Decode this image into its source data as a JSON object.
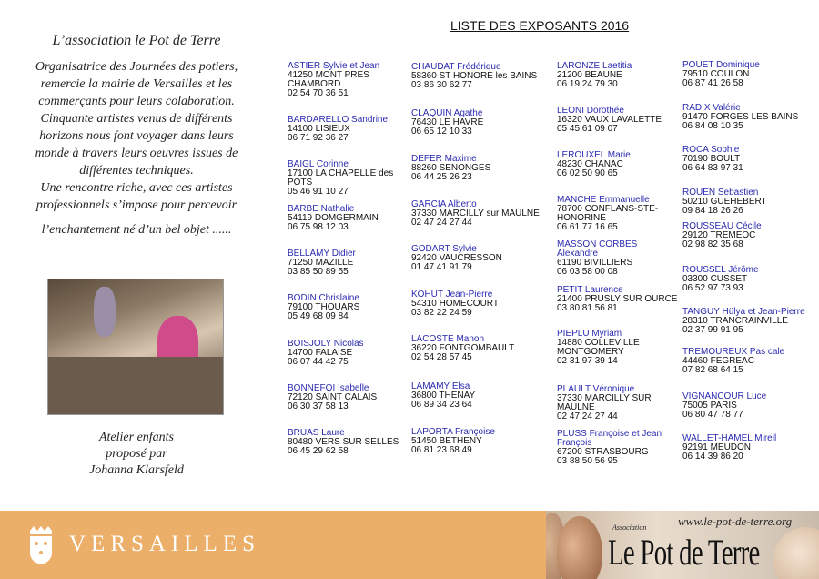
{
  "intro": {
    "title": "L’association le Pot de Terre",
    "body": [
      "Organisatrice des Journées des potiers,",
      "remercie la mairie de Versailles et les",
      "commerçants pour leurs colaboration.",
      "Cinquante artistes venus de différents",
      "horizons nous font voyager  dans leurs",
      "monde à travers leurs oeuvres issues de",
      "différentes techniques.",
      "Une rencontre riche, avec ces artistes",
      "professionnels s’impose pour percevoir"
    ],
    "last_line": "l’enchantement né d’un bel objet ......"
  },
  "photo": {
    "description_icon": "workshop-photo"
  },
  "caption": [
    "Atelier enfants",
    "proposé par",
    "Johanna Klarsfeld"
  ],
  "list_title": "LISTE DES EXPOSANTS 2016",
  "columns": [
    [
      {
        "name": "ASTIER Sylvie et Jean",
        "lines": [
          "41250 MONT PRES",
          "CHAMBORD",
          "02 54 70 36 51"
        ]
      },
      {
        "name": "BARDARELLO Sandrine",
        "lines": [
          "14100 LISIEUX",
          "06 71 92 36 27"
        ]
      },
      {
        "name": "BAIGL Corinne",
        "lines": [
          "17100 LA CHAPELLE des POTS",
          "05 46 91 10 27"
        ]
      },
      {
        "name": "BARBE Nathalie",
        "lines": [
          "54119 DOMGERMAIN",
          "06 75 98 12 03"
        ]
      },
      {
        "name": "BELLAMY Didier",
        "lines": [
          "71250 MAZILLE",
          "03 85 50 89 55"
        ]
      },
      {
        "name": "BODIN Chrislaine",
        "lines": [
          "79100 THOUARS",
          "05 49 68 09 84"
        ]
      },
      {
        "name": "BOISJOLY Nicolas",
        "lines": [
          "14700 FALAISE",
          "06 07 44 42 75"
        ]
      },
      {
        "name": "BONNEFOI Isabelle",
        "lines": [
          "72120 SAINT CALAIS",
          "06 30 37 58 13"
        ]
      },
      {
        "name": "BRUAS Laure",
        "lines": [
          "80480 VERS SUR SELLES",
          "06 45 29 62 58"
        ]
      }
    ],
    [
      {
        "name": "CHAUDAT Frédérique",
        "lines": [
          "58360 ST HONORE les BAINS",
          "03 86 30 62 77"
        ]
      },
      {
        "name": "CLAQUIN Agathe",
        "lines": [
          "76430 LE HAVRE",
          "06 65 12 10 33"
        ]
      },
      {
        "name": "DEFER Maxime",
        "lines": [
          "88260 SENONGES",
          "06 44 25 26 23"
        ]
      },
      {
        "name": "GARCIA Alberto",
        "lines": [
          "37330 MARCILLY sur MAULNE",
          "02 47 24 27 44"
        ]
      },
      {
        "name": "GODART Sylvie",
        "lines": [
          "92420 VAUCRESSON",
          "01 47 41 91 79"
        ]
      },
      {
        "name": "KOHUT Jean-Pierre",
        "lines": [
          "54310 HOMECOURT",
          "03 82 22 24 59"
        ]
      },
      {
        "name": "LACOSTE Manon",
        "lines": [
          "36220 FONTGOMBAULT",
          "02 54 28 57 45"
        ]
      },
      {
        "name": "LAMAMY Elsa",
        "lines": [
          "36800 THENAY",
          "06 89 34 23 64"
        ]
      },
      {
        "name": "LAPORTA Françoise",
        "lines": [
          "51450 BETHENY",
          "06 81 23 68 49"
        ]
      }
    ],
    [
      {
        "name": "LARONZE Laetitia",
        "lines": [
          "21200 BEAUNE",
          "06 19 24 79 30"
        ]
      },
      {
        "name": "LEONI Dorothée",
        "lines": [
          "16320 VAUX LAVALETTE",
          "05 45 61 09 07"
        ]
      },
      {
        "name": "LEROUXEL Marie",
        "lines": [
          "48230 CHANAC",
          "06 02 50 90 65"
        ]
      },
      {
        "name": "MANCHE Emmanuelle",
        "lines": [
          "78700 CONFLANS-STE-HONORINE",
          "06 61 77 16  65"
        ]
      },
      {
        "name": "MASSON CORBES Alexandre",
        "lines": [
          "61190 BIVILLIERS",
          "06 03 58 00 08"
        ]
      },
      {
        "name": "PETIT Laurence",
        "lines": [
          "21400 PRUSLY SUR OURCE",
          "03 80 81 56 81"
        ]
      },
      {
        "name": "PIEPLU Myriam",
        "lines": [
          "14880 COLLEVILLE",
          "MONTGOMERY",
          "02 31 97 39 14"
        ]
      },
      {
        "name": "PLAULT Véronique",
        "lines": [
          "37330 MARCILLY SUR MAULNE",
          "02 47 24 27 44"
        ]
      },
      {
        "name": "PLUSS Françoise et Jean François",
        "lines": [
          "67200 STRASBOURG",
          "03 88 50 56 95"
        ]
      }
    ],
    [
      {
        "name": "POUET Dominique",
        "lines": [
          "79510 COULON",
          "06 87 41 26 58"
        ]
      },
      {
        "name": "RADIX Valérie",
        "lines": [
          "91470 FORGES LES BAINS",
          "06 84 08 10 35"
        ]
      },
      {
        "name": "ROCA Sophie",
        "lines": [
          "70190 BOULT",
          "06 64 83 97 31"
        ]
      },
      {
        "name": "ROUEN Sebastien",
        "lines": [
          "50210 GUEHEBERT",
          "09 84 18 26 26"
        ]
      },
      {
        "name": "ROUSSEAU Cécile",
        "lines": [
          "29120 TREMEOC",
          "02 98 82 35 68"
        ]
      },
      {
        "name": "ROUSSEL Jérôme",
        "lines": [
          "03300 CUSSET",
          "06 52 97 73 93"
        ]
      },
      {
        "name": "TANGUY Hülya et Jean-Pierre",
        "lines": [
          "28310 TRANCRAINVILLE",
          "02 37 99 91 95"
        ]
      },
      {
        "name": "TREMOUREUX Pas cale",
        "lines": [
          "44460 FEGREAC",
          "07 82 68 64 15"
        ]
      },
      {
        "name": "VIGNANCOUR Luce",
        "lines": [
          "75005 PARIS",
          "06 80 47 78 77"
        ]
      },
      {
        "name": "WALLET-HAMEL Mireil",
        "lines": [
          "92191 MEUDON",
          "06 14 39 86 20"
        ]
      }
    ]
  ],
  "footer": {
    "versailles_logo": "VERSAILLES",
    "crest_icon": "versailles-crest-icon",
    "url": "www.le-pot-de-terre.org",
    "assoc_small": "Association",
    "brand": "Le Pot de Terre",
    "band_color": "#ecaf6a",
    "name_color": "#2a2ab0"
  }
}
